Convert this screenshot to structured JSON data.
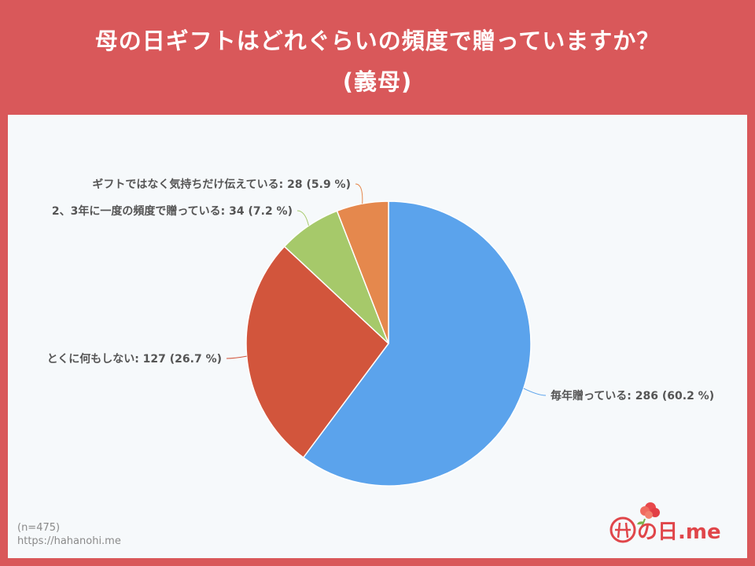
{
  "header": {
    "title_line1": "母の日ギフトはどれぐらいの頻度で贈っていますか？",
    "title_line2": "(義母)"
  },
  "chart_data": {
    "type": "pie",
    "title": "母の日ギフトはどれぐらいの頻度で贈っていますか？ (義母)",
    "start_at": "12 o'clock, clockwise",
    "slices": [
      {
        "label": "毎年贈っている",
        "value": 286,
        "percent": 60.2,
        "color": "#5ba3ec"
      },
      {
        "label": "とくに何もしない",
        "value": 127,
        "percent": 26.7,
        "color": "#d2553c"
      },
      {
        "label": "2、3年に一度の頻度で贈っている",
        "value": 34,
        "percent": 7.2,
        "color": "#a6c96a"
      },
      {
        "label": "ギフトではなく気持ちだけ伝えている",
        "value": 28,
        "percent": 5.9,
        "color": "#e5884d"
      }
    ]
  },
  "footer": {
    "sample_size": "(n=475)",
    "url": "https://hahanohi.me",
    "logo_text": "の日.me"
  }
}
